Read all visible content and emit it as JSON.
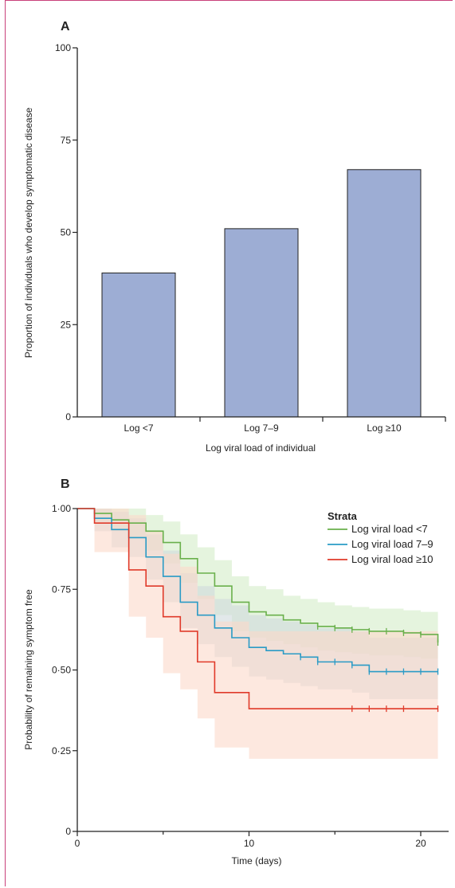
{
  "chart_data": [
    {
      "panel": "A",
      "type": "bar",
      "categories": [
        "Log <7",
        "Log 7–9",
        "Log ≥10"
      ],
      "values": [
        39,
        51,
        67
      ],
      "xlabel": "Log viral load of individual",
      "ylabel": "Proportion of individuals who develop symptomatic disease",
      "ylim": [
        0,
        100
      ],
      "yticks": [
        0,
        25,
        50,
        75,
        100
      ],
      "bar_color": "#9dadd4",
      "grid": false
    },
    {
      "panel": "B",
      "type": "line",
      "subtype": "kaplan-meier step",
      "xlabel": "Time (days)",
      "ylabel": "Probability of remaining symptom free",
      "xlim": [
        0,
        21.5
      ],
      "ylim": [
        0,
        1
      ],
      "xticks": [
        {
          "value": 0,
          "label": "0"
        },
        {
          "value": 10,
          "label": "10"
        },
        {
          "value": 20,
          "label": "20"
        }
      ],
      "yticks": [
        {
          "value": 0,
          "label": "0"
        },
        {
          "value": 0.25,
          "label": "0·25"
        },
        {
          "value": 0.5,
          "label": "0·50"
        },
        {
          "value": 0.75,
          "label": "0·75"
        },
        {
          "value": 1,
          "label": "1·00"
        }
      ],
      "legend_title": "Strata",
      "legend_position": "top-right",
      "grid": false,
      "series": [
        {
          "name": "Log viral load <7",
          "color": "#6ab04c",
          "band_color": "#d4ecc8",
          "steps": [
            [
              0,
              1.0
            ],
            [
              1,
              0.985
            ],
            [
              2,
              0.965
            ],
            [
              3,
              0.955
            ],
            [
              4,
              0.93
            ],
            [
              5,
              0.895
            ],
            [
              6,
              0.845
            ],
            [
              7,
              0.8
            ],
            [
              8,
              0.76
            ],
            [
              9,
              0.71
            ],
            [
              10,
              0.68
            ],
            [
              11,
              0.67
            ],
            [
              12,
              0.655
            ],
            [
              13,
              0.645
            ],
            [
              14,
              0.635
            ],
            [
              15,
              0.63
            ],
            [
              16,
              0.625
            ],
            [
              17,
              0.62
            ],
            [
              18,
              0.62
            ],
            [
              19,
              0.615
            ],
            [
              20,
              0.61
            ],
            [
              21,
              0.585
            ]
          ],
          "lower": [
            [
              0,
              1.0
            ],
            [
              1,
              0.96
            ],
            [
              2,
              0.93
            ],
            [
              3,
              0.91
            ],
            [
              4,
              0.87
            ],
            [
              5,
              0.83
            ],
            [
              6,
              0.77
            ],
            [
              7,
              0.72
            ],
            [
              8,
              0.67
            ],
            [
              9,
              0.62
            ],
            [
              10,
              0.6
            ],
            [
              11,
              0.59
            ],
            [
              12,
              0.58
            ],
            [
              13,
              0.57
            ],
            [
              14,
              0.56
            ],
            [
              15,
              0.555
            ],
            [
              16,
              0.55
            ],
            [
              17,
              0.545
            ],
            [
              18,
              0.545
            ],
            [
              19,
              0.54
            ],
            [
              20,
              0.535
            ],
            [
              21,
              0.51
            ]
          ],
          "upper": [
            [
              0,
              1.0
            ],
            [
              1,
              1.0
            ],
            [
              2,
              1.0
            ],
            [
              3,
              1.0
            ],
            [
              4,
              0.98
            ],
            [
              5,
              0.96
            ],
            [
              6,
              0.92
            ],
            [
              7,
              0.88
            ],
            [
              8,
              0.84
            ],
            [
              9,
              0.79
            ],
            [
              10,
              0.76
            ],
            [
              11,
              0.75
            ],
            [
              12,
              0.73
            ],
            [
              13,
              0.72
            ],
            [
              14,
              0.71
            ],
            [
              15,
              0.7
            ],
            [
              16,
              0.695
            ],
            [
              17,
              0.69
            ],
            [
              18,
              0.69
            ],
            [
              19,
              0.685
            ],
            [
              20,
              0.68
            ],
            [
              21,
              0.66
            ]
          ],
          "censors": [
            14,
            15,
            16,
            17,
            18,
            19,
            20,
            21
          ]
        },
        {
          "name": "Log viral load 7–9",
          "color": "#2a9bc6",
          "band_color": "#cfd8dc",
          "steps": [
            [
              0,
              1.0
            ],
            [
              1,
              0.97
            ],
            [
              2,
              0.935
            ],
            [
              3,
              0.91
            ],
            [
              4,
              0.85
            ],
            [
              5,
              0.79
            ],
            [
              6,
              0.71
            ],
            [
              7,
              0.67
            ],
            [
              8,
              0.63
            ],
            [
              9,
              0.6
            ],
            [
              10,
              0.57
            ],
            [
              11,
              0.56
            ],
            [
              12,
              0.55
            ],
            [
              13,
              0.54
            ],
            [
              14,
              0.525
            ],
            [
              15,
              0.525
            ],
            [
              16,
              0.515
            ],
            [
              17,
              0.495
            ],
            [
              18,
              0.495
            ],
            [
              19,
              0.495
            ],
            [
              20,
              0.495
            ],
            [
              21,
              0.495
            ]
          ],
          "lower": [
            [
              0,
              1.0
            ],
            [
              1,
              0.93
            ],
            [
              2,
              0.88
            ],
            [
              3,
              0.85
            ],
            [
              4,
              0.78
            ],
            [
              5,
              0.71
            ],
            [
              6,
              0.63
            ],
            [
              7,
              0.58
            ],
            [
              8,
              0.54
            ],
            [
              9,
              0.51
            ],
            [
              10,
              0.48
            ],
            [
              11,
              0.47
            ],
            [
              12,
              0.46
            ],
            [
              13,
              0.45
            ],
            [
              14,
              0.44
            ],
            [
              15,
              0.44
            ],
            [
              16,
              0.43
            ],
            [
              17,
              0.41
            ],
            [
              18,
              0.41
            ],
            [
              19,
              0.41
            ],
            [
              20,
              0.41
            ],
            [
              21,
              0.41
            ]
          ],
          "upper": [
            [
              0,
              1.0
            ],
            [
              1,
              1.0
            ],
            [
              2,
              0.99
            ],
            [
              3,
              0.97
            ],
            [
              4,
              0.92
            ],
            [
              5,
              0.87
            ],
            [
              6,
              0.8
            ],
            [
              7,
              0.76
            ],
            [
              8,
              0.72
            ],
            [
              9,
              0.7
            ],
            [
              10,
              0.67
            ],
            [
              11,
              0.66
            ],
            [
              12,
              0.65
            ],
            [
              13,
              0.64
            ],
            [
              14,
              0.63
            ],
            [
              15,
              0.63
            ],
            [
              16,
              0.62
            ],
            [
              17,
              0.6
            ],
            [
              18,
              0.6
            ],
            [
              19,
              0.6
            ],
            [
              20,
              0.6
            ],
            [
              21,
              0.6
            ]
          ],
          "censors": [
            13,
            14,
            15,
            16,
            17,
            18,
            19,
            20,
            21
          ]
        },
        {
          "name": "Log viral load ≥10",
          "color": "#e03a2a",
          "band_color": "#fbd9c9",
          "steps": [
            [
              0,
              1.0
            ],
            [
              1,
              0.955
            ],
            [
              2,
              0.955
            ],
            [
              3,
              0.81
            ],
            [
              4,
              0.76
            ],
            [
              5,
              0.665
            ],
            [
              6,
              0.62
            ],
            [
              7,
              0.525
            ],
            [
              8,
              0.43
            ],
            [
              9,
              0.43
            ],
            [
              10,
              0.38
            ],
            [
              11,
              0.38
            ],
            [
              12,
              0.38
            ],
            [
              13,
              0.38
            ],
            [
              14,
              0.38
            ],
            [
              15,
              0.38
            ],
            [
              16,
              0.38
            ],
            [
              17,
              0.38
            ],
            [
              18,
              0.38
            ],
            [
              19,
              0.38
            ],
            [
              20,
              0.38
            ],
            [
              21,
              0.38
            ]
          ],
          "lower": [
            [
              0,
              1.0
            ],
            [
              1,
              0.865
            ],
            [
              2,
              0.865
            ],
            [
              3,
              0.665
            ],
            [
              4,
              0.6
            ],
            [
              5,
              0.49
            ],
            [
              6,
              0.44
            ],
            [
              7,
              0.35
            ],
            [
              8,
              0.26
            ],
            [
              9,
              0.26
            ],
            [
              10,
              0.225
            ],
            [
              11,
              0.225
            ],
            [
              12,
              0.225
            ],
            [
              13,
              0.225
            ],
            [
              14,
              0.225
            ],
            [
              15,
              0.225
            ],
            [
              16,
              0.225
            ],
            [
              17,
              0.225
            ],
            [
              18,
              0.225
            ],
            [
              19,
              0.225
            ],
            [
              20,
              0.225
            ],
            [
              21,
              0.225
            ]
          ],
          "upper": [
            [
              0,
              1.0
            ],
            [
              1,
              1.0
            ],
            [
              2,
              1.0
            ],
            [
              3,
              0.98
            ],
            [
              4,
              0.93
            ],
            [
              5,
              0.86
            ],
            [
              6,
              0.82
            ],
            [
              7,
              0.73
            ],
            [
              8,
              0.65
            ],
            [
              9,
              0.65
            ],
            [
              10,
              0.62
            ],
            [
              11,
              0.62
            ],
            [
              12,
              0.62
            ],
            [
              13,
              0.62
            ],
            [
              14,
              0.62
            ],
            [
              15,
              0.62
            ],
            [
              16,
              0.62
            ],
            [
              17,
              0.62
            ],
            [
              18,
              0.62
            ],
            [
              19,
              0.62
            ],
            [
              20,
              0.62
            ],
            [
              21,
              0.62
            ]
          ],
          "censors": [
            16,
            17,
            18,
            19,
            21
          ]
        }
      ]
    }
  ],
  "panels": {
    "a_label": "A",
    "b_label": "B"
  }
}
